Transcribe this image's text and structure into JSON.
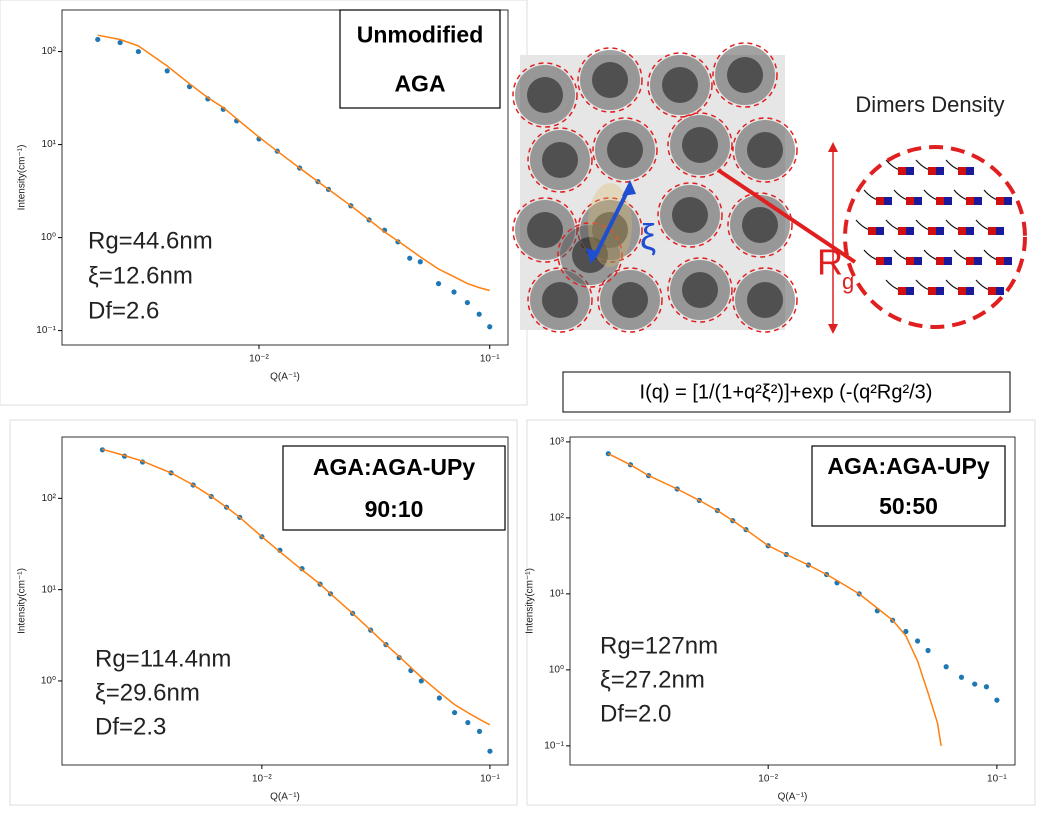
{
  "chart_data": [
    {
      "type": "scatter",
      "xscale": "log",
      "yscale": "log",
      "x_label": "Q(A⁻¹)",
      "y_label": "Intensity(cm⁻¹)",
      "label_lines": [
        "Unmodified",
        "AGA"
      ],
      "annotations": [
        "Rg=44.6nm",
        "ξ=12.6nm",
        "Df=2.6"
      ],
      "xlim": [
        0.0014,
        0.12
      ],
      "ylim": [
        0.07,
        280
      ],
      "xticks": [
        {
          "value": 0.01,
          "label": "10⁻²"
        },
        {
          "value": 0.1,
          "label": "10⁻¹"
        }
      ],
      "yticks": [
        {
          "value": 0.1,
          "label": "10⁻¹"
        },
        {
          "value": 1,
          "label": "10⁰"
        },
        {
          "value": 10,
          "label": "10¹"
        },
        {
          "value": 100,
          "label": "10²"
        }
      ],
      "series": [
        {
          "mode": "markers",
          "color": "#1f77b4",
          "x": [
            0.002,
            0.0025,
            0.003,
            0.004,
            0.005,
            0.006,
            0.007,
            0.008,
            0.01,
            0.012,
            0.015,
            0.018,
            0.02,
            0.025,
            0.03,
            0.035,
            0.04,
            0.045,
            0.05,
            0.06,
            0.07,
            0.08,
            0.09,
            0.1
          ],
          "values": [
            135,
            125,
            100,
            62,
            42,
            31,
            24,
            18,
            11.5,
            8.5,
            5.6,
            4.0,
            3.3,
            2.2,
            1.55,
            1.2,
            0.9,
            0.6,
            0.55,
            0.32,
            0.26,
            0.2,
            0.15,
            0.11
          ]
        },
        {
          "mode": "line",
          "color": "#ff7f0e",
          "x": [
            0.002,
            0.0025,
            0.003,
            0.004,
            0.005,
            0.006,
            0.007,
            0.008,
            0.01,
            0.012,
            0.015,
            0.018,
            0.02,
            0.025,
            0.03,
            0.035,
            0.04,
            0.045,
            0.05,
            0.06,
            0.07,
            0.08,
            0.09,
            0.1
          ],
          "values": [
            150,
            135,
            115,
            70,
            45,
            32,
            25,
            19,
            12,
            8.5,
            5.6,
            4.0,
            3.3,
            2.2,
            1.55,
            1.15,
            0.92,
            0.75,
            0.62,
            0.46,
            0.38,
            0.32,
            0.29,
            0.27
          ]
        }
      ]
    },
    {
      "type": "scatter",
      "xscale": "log",
      "yscale": "log",
      "x_label": "Q(A⁻¹)",
      "y_label": "Intensity(cm⁻¹)",
      "label_lines": [
        "AGA:AGA-UPy",
        "90:10"
      ],
      "annotations": [
        "Rg=114.4nm",
        "ξ=29.6nm",
        "Df=2.3"
      ],
      "xlim": [
        0.00133,
        0.12
      ],
      "ylim": [
        0.12,
        470
      ],
      "xticks": [
        {
          "value": 0.01,
          "label": "10⁻²"
        },
        {
          "value": 0.1,
          "label": "10⁻¹"
        }
      ],
      "yticks": [
        {
          "value": 1,
          "label": "10⁰"
        },
        {
          "value": 10,
          "label": "10¹"
        },
        {
          "value": 100,
          "label": "10²"
        }
      ],
      "series": [
        {
          "mode": "markers",
          "color": "#1f77b4",
          "x": [
            0.002,
            0.0025,
            0.003,
            0.004,
            0.005,
            0.006,
            0.007,
            0.008,
            0.01,
            0.012,
            0.015,
            0.018,
            0.02,
            0.025,
            0.03,
            0.035,
            0.04,
            0.045,
            0.05,
            0.06,
            0.07,
            0.08,
            0.09,
            0.1
          ],
          "values": [
            340,
            290,
            250,
            190,
            140,
            105,
            80,
            62,
            38,
            27,
            17,
            11.5,
            9,
            5.5,
            3.6,
            2.5,
            1.8,
            1.3,
            1.0,
            0.65,
            0.45,
            0.35,
            0.28,
            0.17
          ]
        },
        {
          "mode": "line",
          "color": "#ff7f0e",
          "x": [
            0.002,
            0.0025,
            0.003,
            0.004,
            0.005,
            0.006,
            0.007,
            0.008,
            0.01,
            0.012,
            0.015,
            0.018,
            0.02,
            0.025,
            0.03,
            0.035,
            0.04,
            0.045,
            0.05,
            0.06,
            0.07,
            0.08,
            0.09,
            0.1
          ],
          "values": [
            345,
            295,
            255,
            190,
            140,
            105,
            80,
            62,
            38,
            26,
            16.5,
            11.5,
            9,
            5.5,
            3.6,
            2.5,
            1.85,
            1.4,
            1.1,
            0.75,
            0.55,
            0.45,
            0.38,
            0.33
          ]
        }
      ]
    },
    {
      "type": "scatter",
      "xscale": "log",
      "yscale": "log",
      "x_label": "Q(A⁻¹)",
      "y_label": "Intensity(cm⁻¹)",
      "label_lines": [
        "AGA:AGA-UPy",
        "50:50"
      ],
      "annotations": [
        "Rg=127nm",
        "ξ=27.2nm",
        "Df=2.0"
      ],
      "xlim": [
        0.00136,
        0.12
      ],
      "ylim": [
        0.056,
        1160
      ],
      "xticks": [
        {
          "value": 0.01,
          "label": "10⁻²"
        },
        {
          "value": 0.1,
          "label": "10⁻¹"
        }
      ],
      "yticks": [
        {
          "value": 0.1,
          "label": "10⁻¹"
        },
        {
          "value": 1,
          "label": "10⁰"
        },
        {
          "value": 10,
          "label": "10¹"
        },
        {
          "value": 100,
          "label": "10²"
        },
        {
          "value": 1000,
          "label": "10³"
        }
      ],
      "series": [
        {
          "mode": "markers",
          "color": "#1f77b4",
          "x": [
            0.002,
            0.0025,
            0.003,
            0.004,
            0.005,
            0.006,
            0.007,
            0.008,
            0.01,
            0.012,
            0.015,
            0.018,
            0.02,
            0.025,
            0.03,
            0.035,
            0.04,
            0.045,
            0.05,
            0.06,
            0.07,
            0.08,
            0.09,
            0.1
          ],
          "values": [
            700,
            500,
            360,
            240,
            170,
            125,
            92,
            70,
            43,
            33,
            24,
            18,
            14,
            10,
            6,
            4.5,
            3.2,
            2.4,
            1.8,
            1.1,
            0.8,
            0.65,
            0.6,
            0.4
          ]
        },
        {
          "mode": "line",
          "color": "#ff7f0e",
          "x": [
            0.002,
            0.0025,
            0.003,
            0.004,
            0.005,
            0.006,
            0.007,
            0.008,
            0.01,
            0.012,
            0.015,
            0.018,
            0.02,
            0.025,
            0.03,
            0.035,
            0.04,
            0.045,
            0.05,
            0.055,
            0.057
          ],
          "values": [
            700,
            500,
            360,
            240,
            170,
            125,
            92,
            70,
            43,
            33,
            24,
            18,
            15,
            10,
            6.5,
            4.5,
            2.8,
            1.3,
            0.5,
            0.2,
            0.1
          ]
        }
      ]
    }
  ],
  "diagram": {
    "xi_symbol": "ξ",
    "rg_symbol": "R",
    "rg_subscript": "g",
    "title": "Dimers Density",
    "formula": "I(q) = [1/(1+q²ξ²)]+exp (-(q²Rg²/3)"
  }
}
